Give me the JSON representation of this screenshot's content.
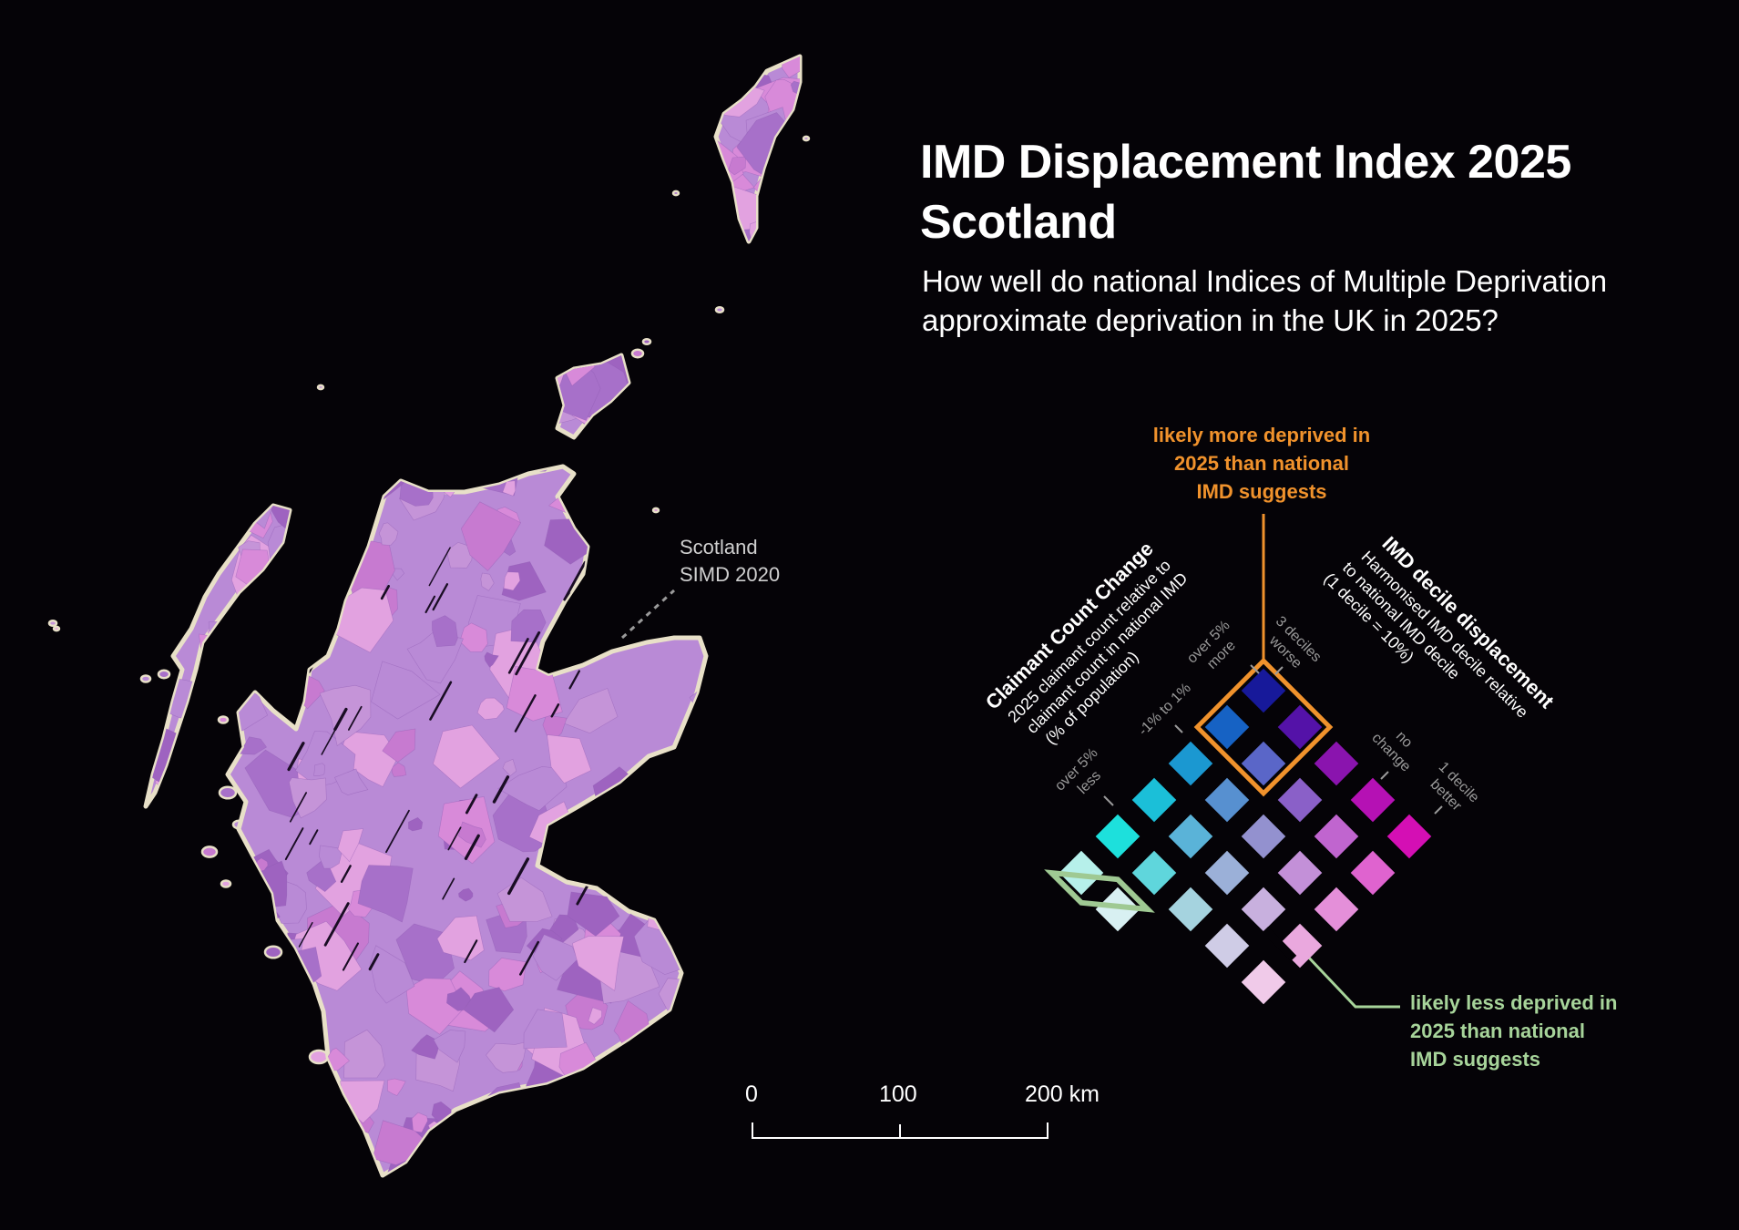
{
  "header": {
    "title_line1": "IMD Displacement Index 2025",
    "title_line2": "Scotland",
    "subtitle_line1": "How well do national Indices of Multiple Deprivation",
    "subtitle_line2": "approximate deprivation in the UK in 2025?"
  },
  "map": {
    "label_line1": "Scotland",
    "label_line2": "SIMD 2020",
    "fill_colors": [
      "#b98ad6",
      "#a770c9",
      "#d88ad9",
      "#c77ad0",
      "#e2a2e0",
      "#9e63c0",
      "#c594d8"
    ],
    "coast_color": "#e8e0c8"
  },
  "legend": {
    "note_more": {
      "line1": "likely more deprived in",
      "line2": "2025 than national",
      "line3": "IMD suggests",
      "color": "#f0922c"
    },
    "note_less": {
      "line1": "likely less deprived in",
      "line2": "2025 than national",
      "line3": "IMD suggests",
      "color": "#a7d49a"
    },
    "left_axis": {
      "title": "Claimant Count Change",
      "desc_line1": "2025 claimant count relative to",
      "desc_line2": "claimant count in national IMD",
      "desc_line3": "(% of population)",
      "ticks": [
        {
          "line1": "over 5%",
          "line2": "more"
        },
        {
          "line1": "-1% to 1%",
          "line2": ""
        },
        {
          "line1": "over 5%",
          "line2": "less"
        }
      ]
    },
    "right_axis": {
      "title": "IMD decile displacement",
      "desc_line1": "Harmonised IMD decile relative",
      "desc_line2": "to national IMD decile",
      "desc_line3": "(1 decile = 10%)",
      "ticks": [
        {
          "line1": "3 deciles",
          "line2": "worse"
        },
        {
          "line1": "no",
          "line2": "change"
        },
        {
          "line1": "1 decile",
          "line2": "better"
        }
      ]
    },
    "grid": [
      [
        "#17199a",
        "#5412a8",
        "#8a14ae",
        "#b511b4",
        "#d40fb4"
      ],
      [
        "#1662c4",
        "#5a66c8",
        "#8a60c8",
        "#c065cf",
        "#df63cf"
      ],
      [
        "#1b98d1",
        "#5790d0",
        "#9391cf",
        "#c390d8",
        "#e48fd9"
      ],
      [
        "#1bbfd8",
        "#5ab3d8",
        "#9bb0d8",
        "#c8b0de",
        "#eaa8de"
      ],
      [
        "#1de0dc",
        "#5fd6dc",
        "#a5d3df",
        "#cfcce6",
        "#f0cae9"
      ],
      [
        "#b6f0ea",
        "#d8f0f2",
        "#f0ecf4",
        "#f6e2f2",
        "#f6ddf0"
      ]
    ]
  },
  "scale_bar": {
    "labels": [
      "0",
      "100",
      "200 km"
    ]
  }
}
